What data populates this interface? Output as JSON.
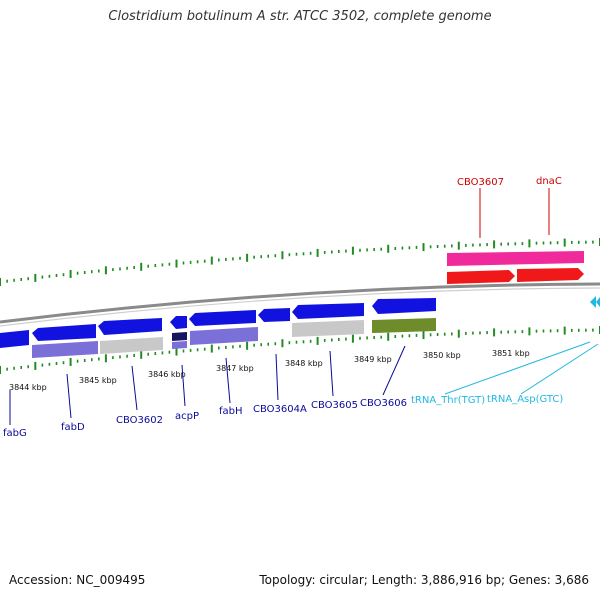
{
  "title": "Clostridium botulinum A str. ATCC 3502, complete genome",
  "footer": {
    "accession": "Accession: NC_009495",
    "topology": "Topology: circular; Length: 3,886,916 bp; Genes: 3,686"
  },
  "colors": {
    "cds_blue": "#1212e0",
    "domain_purple": "#7b6fd8",
    "gray": "#c8c8c8",
    "olive": "#6e8c2a",
    "red": "#f01818",
    "pink": "#f02a9a",
    "label_blue": "#0a0a9a",
    "label_red": "#d00000",
    "label_cyan": "#22b8e0",
    "tick_green": "#228b22"
  },
  "kbp_ticks": [
    "3844 kbp",
    "3845 kbp",
    "3846 kbp",
    "3847 kbp",
    "3848 kbp",
    "3849 kbp",
    "3850 kbp",
    "3851 kbp"
  ],
  "genes_reverse": [
    "fabG",
    "fabD",
    "CBO3602",
    "acpP",
    "fabH",
    "CBO3604A",
    "CBO3605",
    "CBO3606"
  ],
  "genes_forward": [
    "CBO3607",
    "dnaC"
  ],
  "trnas": [
    "tRNA_Thr(TGT)",
    "tRNA_Asp(GTC)"
  ]
}
